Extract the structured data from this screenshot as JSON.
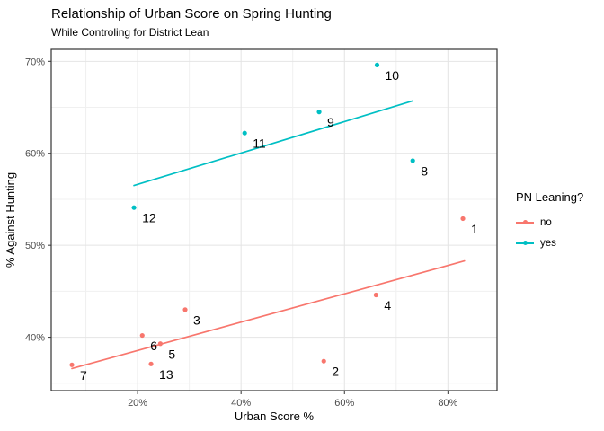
{
  "page": {
    "title": "Relationship of Urban Score on Spring Hunting",
    "subtitle": "While Controling for District Lean"
  },
  "chart_data": {
    "type": "scatter",
    "title": "Relationship of Urban Score on Spring Hunting",
    "subtitle": "While Controling for District Lean",
    "xlabel": "Urban Score %",
    "ylabel": "% Against Hunting",
    "xlim": [
      3.3,
      89.5
    ],
    "ylim": [
      34.2,
      71.3
    ],
    "x_ticks": [
      {
        "value": 20,
        "label": "20%"
      },
      {
        "value": 40,
        "label": "40%"
      },
      {
        "value": 60,
        "label": "60%"
      },
      {
        "value": 80,
        "label": "80%"
      }
    ],
    "y_ticks": [
      {
        "value": 40,
        "label": "40%"
      },
      {
        "value": 50,
        "label": "50%"
      },
      {
        "value": 60,
        "label": "60%"
      },
      {
        "value": 70,
        "label": "70%"
      }
    ],
    "x_minor_ticks": [
      10,
      30,
      50,
      70
    ],
    "y_minor_ticks": [
      35,
      45,
      55,
      65
    ],
    "grid": true,
    "legend": {
      "title": "PN Leaning?",
      "position": "right",
      "items": [
        {
          "label": "no",
          "color": "#F8766D"
        },
        {
          "label": "yes",
          "color": "#00BFC4"
        }
      ]
    },
    "series": [
      {
        "name": "no",
        "color": "#F8766D",
        "points": [
          {
            "label": "1",
            "x": 82.9,
            "y": 52.9
          },
          {
            "label": "2",
            "x": 56.0,
            "y": 37.4
          },
          {
            "label": "3",
            "x": 29.2,
            "y": 43.0
          },
          {
            "label": "4",
            "x": 66.1,
            "y": 44.6
          },
          {
            "label": "5",
            "x": 24.4,
            "y": 39.3
          },
          {
            "label": "6",
            "x": 20.9,
            "y": 40.2
          },
          {
            "label": "7",
            "x": 7.3,
            "y": 37.0
          },
          {
            "label": "13",
            "x": 22.6,
            "y": 37.1
          }
        ],
        "trend": {
          "x1": 7.3,
          "y1": 36.6,
          "x2": 83.2,
          "y2": 48.3
        }
      },
      {
        "name": "yes",
        "color": "#00BFC4",
        "points": [
          {
            "label": "8",
            "x": 73.2,
            "y": 59.2
          },
          {
            "label": "9",
            "x": 55.1,
            "y": 64.5
          },
          {
            "label": "10",
            "x": 66.3,
            "y": 69.6
          },
          {
            "label": "11",
            "x": 40.7,
            "y": 62.2
          },
          {
            "label": "12",
            "x": 19.3,
            "y": 54.1
          }
        ],
        "trend": {
          "x1": 19.3,
          "y1": 56.5,
          "x2": 73.2,
          "y2": 65.7
        }
      }
    ],
    "colors": {
      "background": "#ffffff",
      "panel_border": "#333333",
      "grid_major": "#e4e4e4",
      "grid_minor": "#f0f0f0",
      "axis_text": "#4d4d4d",
      "text": "#000000"
    }
  }
}
